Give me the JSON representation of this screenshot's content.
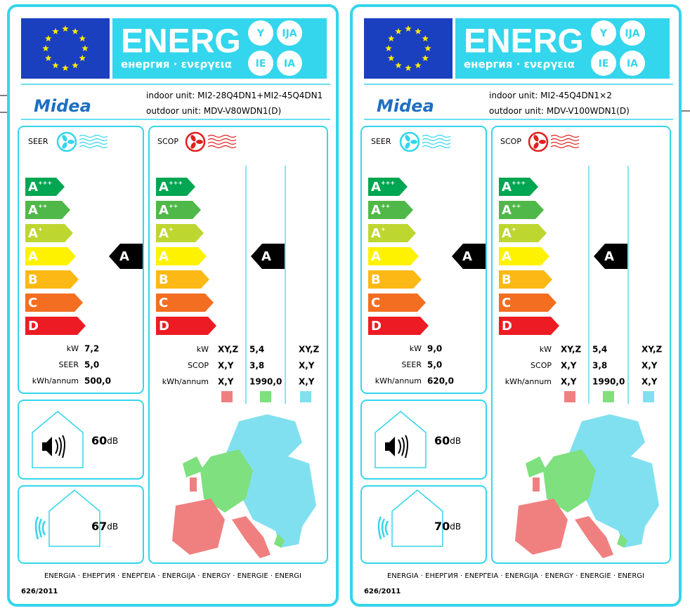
{
  "labels": [
    {
      "header": {
        "energ": "ENERG",
        "subtitle": "енергия · ενεργεια",
        "langs": [
          "Y",
          "IJA",
          "IE",
          "IA"
        ]
      },
      "brand": "Midea",
      "indoor_label": "indoor unit:",
      "indoor": "MI2-28Q4DN1+MI2-45Q4DN1",
      "outdoor_label": "outdoor unit:",
      "outdoor": "MDV-V80WDN1(D)",
      "seer": {
        "label": "SEER",
        "classes": [
          {
            "letter": "A",
            "sup": "+++"
          },
          {
            "letter": "A",
            "sup": "++"
          },
          {
            "letter": "A",
            "sup": "+"
          },
          {
            "letter": "A"
          },
          {
            "letter": "B"
          },
          {
            "letter": "C"
          },
          {
            "letter": "D"
          }
        ],
        "rating": "A",
        "rows": [
          [
            "kW",
            "7,2"
          ],
          [
            "SEER",
            "5,0"
          ],
          [
            "kWh/annum",
            "500,0"
          ]
        ]
      },
      "scop": {
        "label": "SCOP",
        "classes": [
          {
            "letter": "A",
            "sup": "+++"
          },
          {
            "letter": "A",
            "sup": "++"
          },
          {
            "letter": "A",
            "sup": "+"
          },
          {
            "letter": "A"
          },
          {
            "letter": "B"
          },
          {
            "letter": "C"
          },
          {
            "letter": "D"
          }
        ],
        "rating": "A",
        "rows": [
          [
            "kW",
            "XY,Z",
            "5,4",
            "XY,Z"
          ],
          [
            "SCOP",
            "X,Y",
            "3,8",
            "X,Y"
          ],
          [
            "kWh/annum",
            "X,Y",
            "1990,0",
            "X,Y"
          ]
        ]
      },
      "noise_indoor": {
        "value": "60",
        "unit": "dB"
      },
      "noise_outdoor": {
        "value": "67",
        "unit": "dB"
      },
      "footer": "ENERGIA · ЕНЕРГИЯ · ΕΝΕΡΓΕΙΑ · ENERGIJA · ENERGY · ENERGIE · ENERGI",
      "regulation": "626/2011"
    },
    {
      "header": {
        "energ": "ENERG",
        "subtitle": "енергия · ενεργεια",
        "langs": [
          "Y",
          "IJA",
          "IE",
          "IA"
        ]
      },
      "brand": "Midea",
      "indoor_label": "indoor unit:",
      "indoor": "MI2-45Q4DN1×2",
      "outdoor_label": "outdoor unit:",
      "outdoor": "MDV-V100WDN1(D)",
      "seer": {
        "label": "SEER",
        "classes": [
          {
            "letter": "A",
            "sup": "+++"
          },
          {
            "letter": "A",
            "sup": "++"
          },
          {
            "letter": "A",
            "sup": "+"
          },
          {
            "letter": "A"
          },
          {
            "letter": "B"
          },
          {
            "letter": "C"
          },
          {
            "letter": "D"
          }
        ],
        "rating": "A",
        "rows": [
          [
            "kW",
            "9,0"
          ],
          [
            "SEER",
            "5,0"
          ],
          [
            "kWh/annum",
            "620,0"
          ]
        ]
      },
      "scop": {
        "label": "SCOP",
        "classes": [
          {
            "letter": "A",
            "sup": "+++"
          },
          {
            "letter": "A",
            "sup": "++"
          },
          {
            "letter": "A",
            "sup": "+"
          },
          {
            "letter": "A"
          },
          {
            "letter": "B"
          },
          {
            "letter": "C"
          },
          {
            "letter": "D"
          }
        ],
        "rating": "A",
        "rows": [
          [
            "kW",
            "XY,Z",
            "5,4",
            "XY,Z"
          ],
          [
            "SCOP",
            "X,Y",
            "3,8",
            "X,Y"
          ],
          [
            "kWh/annum",
            "X,Y",
            "1990,0",
            "X,Y"
          ]
        ]
      },
      "noise_indoor": {
        "value": "60",
        "unit": "dB"
      },
      "noise_outdoor": {
        "value": "70",
        "unit": "dB"
      },
      "footer": "ENERGIA · ЕНЕРГИЯ · ΕΝΕΡΓΕΙΑ · ENERGIJA · ENERGY · ENERGIE · ENERGI",
      "regulation": "626/2011"
    }
  ]
}
